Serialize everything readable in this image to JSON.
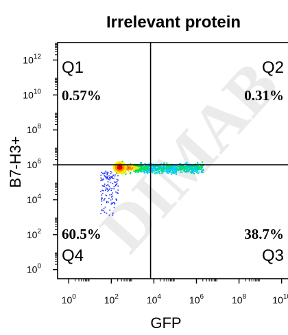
{
  "chart_data": {
    "type": "scatter",
    "title": "Irrelevant protein",
    "xlabel": "GFP",
    "ylabel": "B7-H3+",
    "x_scale": "log",
    "y_scale": "log",
    "xlim": [
      0.3,
      20000000000
    ],
    "ylim": [
      0.3,
      10000000000000
    ],
    "x_ticks": [
      {
        "value": 1,
        "base": "10",
        "exp": "0"
      },
      {
        "value": 100,
        "base": "10",
        "exp": "2"
      },
      {
        "value": 10000,
        "base": "10",
        "exp": "4"
      },
      {
        "value": 1000000,
        "base": "10",
        "exp": "6"
      },
      {
        "value": 100000000,
        "base": "10",
        "exp": "8"
      },
      {
        "value": 10000000000,
        "base": "10",
        "exp": "10"
      }
    ],
    "y_ticks": [
      {
        "value": 1,
        "base": "10",
        "exp": "0"
      },
      {
        "value": 100,
        "base": "10",
        "exp": "2"
      },
      {
        "value": 10000,
        "base": "10",
        "exp": "4"
      },
      {
        "value": 1000000,
        "base": "10",
        "exp": "6"
      },
      {
        "value": 100000000,
        "base": "10",
        "exp": "8"
      },
      {
        "value": 10000000000,
        "base": "10",
        "exp": "10"
      },
      {
        "value": 1000000000000,
        "base": "10",
        "exp": "12"
      }
    ],
    "gate": {
      "x": 7000,
      "y": 1000000
    },
    "quadrants": [
      {
        "label": "Q1",
        "percent": "0.57%",
        "position": "top-left"
      },
      {
        "label": "Q2",
        "percent": "0.31%",
        "position": "top-right"
      },
      {
        "label": "Q4",
        "percent": "60.5%",
        "position": "bottom-left"
      },
      {
        "label": "Q3",
        "percent": "38.7%",
        "position": "bottom-right"
      }
    ],
    "populations": [
      {
        "x_range": [
          80,
          2000000
        ],
        "y_center": 700000,
        "y_spread": [
          100000,
          3000000
        ],
        "density": "high"
      },
      {
        "x_range": [
          30,
          200
        ],
        "y_range": [
          1000,
          500000
        ],
        "density": "low"
      }
    ],
    "density_colors": [
      "#2233ff",
      "#00c8ff",
      "#00e05a",
      "#f2ee00",
      "#ff8a00",
      "#e80000"
    ],
    "watermark": "DIMAB"
  }
}
